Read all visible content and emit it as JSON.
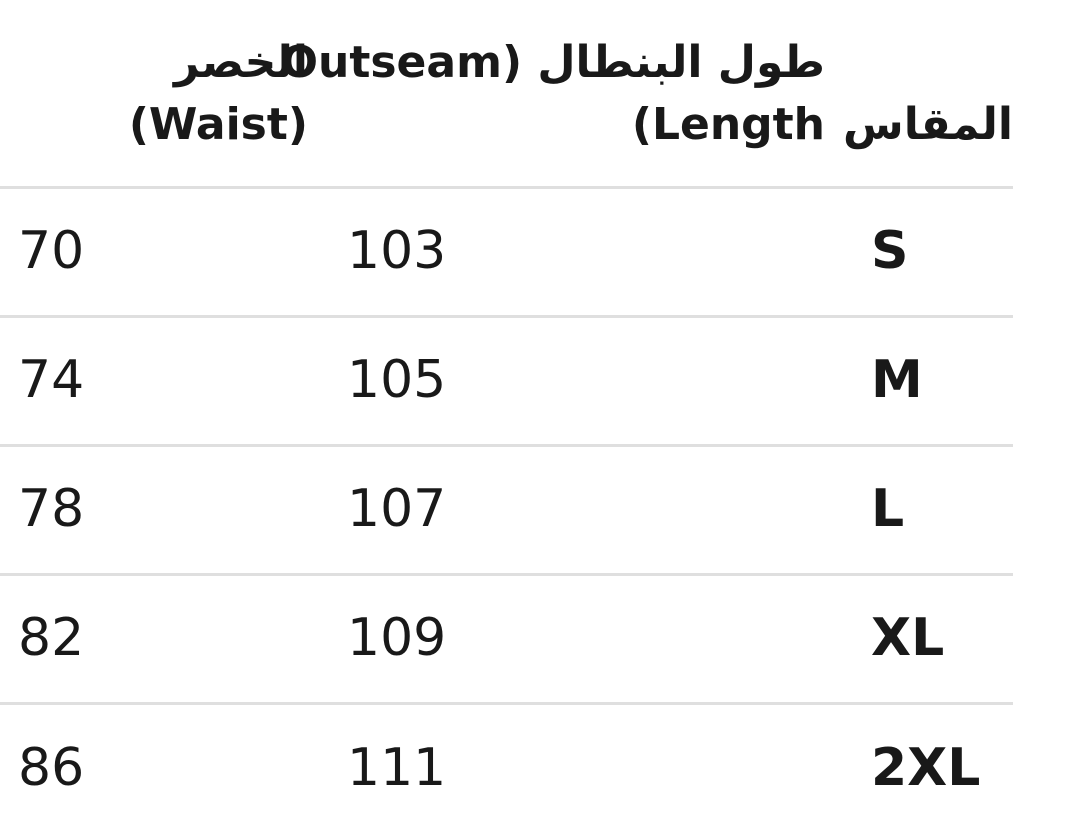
{
  "table": {
    "direction": "rtl",
    "columns": [
      {
        "key": "size",
        "label": "المقاس"
      },
      {
        "key": "outseam",
        "label": "طول البنطال (Outseam Length)",
        "label_line1": "طول البنطال (Outseam",
        "label_line2": "Length)"
      },
      {
        "key": "waist",
        "label": "الخصر (Waist)"
      }
    ],
    "rows": [
      {
        "size": "S",
        "outseam": "103",
        "waist": "70"
      },
      {
        "size": "M",
        "outseam": "105",
        "waist": "74"
      },
      {
        "size": "L",
        "outseam": "107",
        "waist": "78"
      },
      {
        "size": "XL",
        "outseam": "109",
        "waist": "82"
      },
      {
        "size": "2XL",
        "outseam": "111",
        "waist": "86"
      }
    ]
  },
  "colors": {
    "text": "#191919",
    "divider": "#dfdfdf",
    "background": "#ffffff"
  }
}
